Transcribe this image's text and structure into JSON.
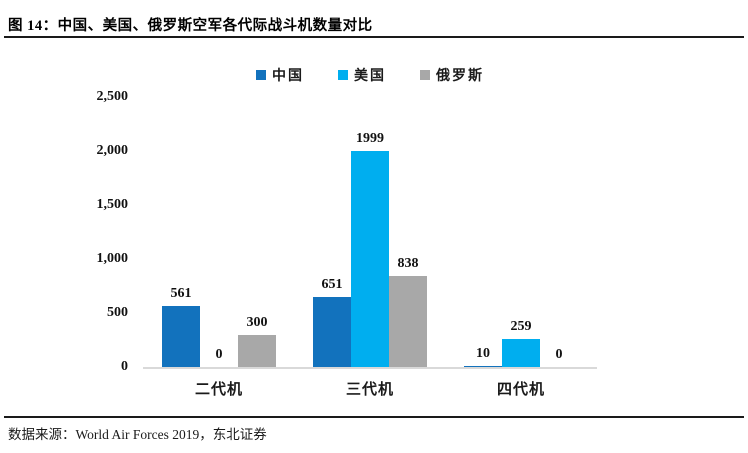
{
  "header": {
    "title": "图 14：中国、美国、俄罗斯空军各代际战斗机数量对比"
  },
  "footer": {
    "source": "数据来源：World Air Forces 2019，东北证券"
  },
  "colors": {
    "china_blue": "#1272BD",
    "usa_cyan": "#00AEEF",
    "russia_gray": "#A8A8A8",
    "axis_line": "#D9D9D9",
    "divider": "#1A1A1A"
  },
  "chart_data": {
    "type": "bar",
    "title": "中国、美国、俄罗斯空军各代际战斗机数量对比",
    "xlabel": "",
    "ylabel": "",
    "categories": [
      "二代机",
      "三代机",
      "四代机"
    ],
    "series": [
      {
        "name": "中国",
        "color": "#1272BD",
        "values": [
          561,
          651,
          10
        ]
      },
      {
        "name": "美国",
        "color": "#00AEEF",
        "values": [
          0,
          1999,
          259
        ]
      },
      {
        "name": "俄罗斯",
        "color": "#A8A8A8",
        "values": [
          300,
          838,
          0
        ]
      }
    ],
    "ylim": [
      0,
      2500
    ],
    "ytick_labels": [
      "2,500",
      "2,000",
      "1,500",
      "1,000",
      "500",
      "0"
    ],
    "grid": false,
    "legend_position": "top",
    "value_labels_shown": true
  }
}
